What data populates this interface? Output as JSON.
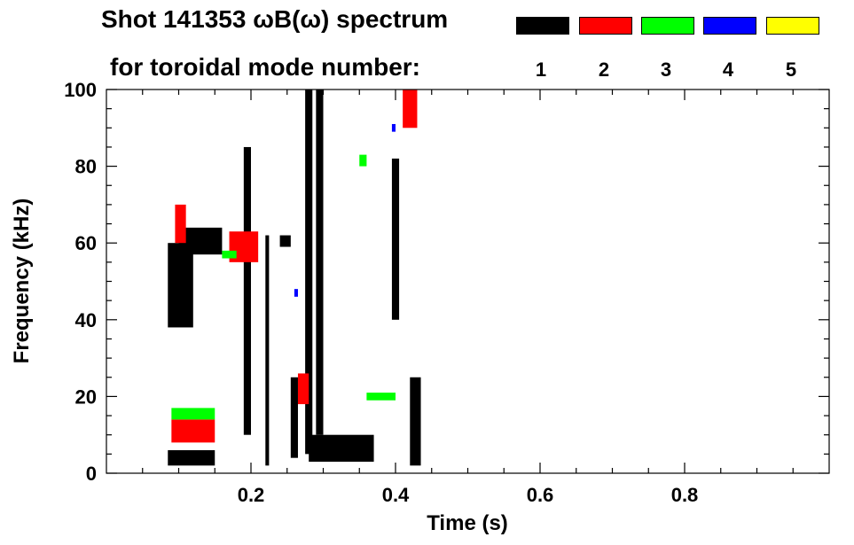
{
  "chart_data": {
    "type": "heatmap",
    "title_line1": "Shot 141353 ωB(ω) spectrum",
    "title_line2": "for toroidal mode number:",
    "xlabel": "Time (s)",
    "ylabel": "Frequency (kHz)",
    "xlim": [
      0.0,
      1.0
    ],
    "ylim": [
      0,
      100
    ],
    "x_ticks": [
      0.2,
      0.4,
      0.6,
      0.8
    ],
    "x_tick_labels": [
      "0.2",
      "0.4",
      "0.6",
      "0.8"
    ],
    "y_ticks": [
      0,
      20,
      40,
      60,
      80,
      100
    ],
    "y_tick_labels": [
      "0",
      "20",
      "40",
      "60",
      "80",
      "100"
    ],
    "legend": [
      {
        "n": "1",
        "color": "#000000"
      },
      {
        "n": "2",
        "color": "#ff0000"
      },
      {
        "n": "3",
        "color": "#00ff00"
      },
      {
        "n": "4",
        "color": "#0000ff"
      },
      {
        "n": "5",
        "color": "#ffff00"
      }
    ],
    "regions": [
      {
        "n": "1",
        "t": [
          0.085,
          0.12
        ],
        "f": [
          38,
          60
        ]
      },
      {
        "n": "1",
        "t": [
          0.1,
          0.16
        ],
        "f": [
          57,
          64
        ]
      },
      {
        "n": "1",
        "t": [
          0.085,
          0.15
        ],
        "f": [
          2,
          6
        ]
      },
      {
        "n": "1",
        "t": [
          0.19,
          0.2
        ],
        "f": [
          10,
          85
        ]
      },
      {
        "n": "1",
        "t": [
          0.22,
          0.225
        ],
        "f": [
          2,
          62
        ]
      },
      {
        "n": "1",
        "t": [
          0.24,
          0.255
        ],
        "f": [
          59,
          62
        ]
      },
      {
        "n": "1",
        "t": [
          0.255,
          0.265
        ],
        "f": [
          4,
          25
        ]
      },
      {
        "n": "1",
        "t": [
          0.275,
          0.285
        ],
        "f": [
          5,
          100
        ]
      },
      {
        "n": "1",
        "t": [
          0.28,
          0.37
        ],
        "f": [
          3,
          10
        ]
      },
      {
        "n": "1",
        "t": [
          0.29,
          0.3
        ],
        "f": [
          10,
          100
        ]
      },
      {
        "n": "1",
        "t": [
          0.395,
          0.405
        ],
        "f": [
          40,
          82
        ]
      },
      {
        "n": "1",
        "t": [
          0.42,
          0.435
        ],
        "f": [
          2,
          25
        ]
      },
      {
        "n": "2",
        "t": [
          0.095,
          0.11
        ],
        "f": [
          60,
          70
        ]
      },
      {
        "n": "2",
        "t": [
          0.09,
          0.15
        ],
        "f": [
          8,
          14
        ]
      },
      {
        "n": "2",
        "t": [
          0.17,
          0.21
        ],
        "f": [
          55,
          63
        ]
      },
      {
        "n": "2",
        "t": [
          0.265,
          0.28
        ],
        "f": [
          18,
          26
        ]
      },
      {
        "n": "2",
        "t": [
          0.41,
          0.43
        ],
        "f": [
          90,
          100
        ]
      },
      {
        "n": "3",
        "t": [
          0.09,
          0.15
        ],
        "f": [
          14,
          17
        ]
      },
      {
        "n": "3",
        "t": [
          0.16,
          0.18
        ],
        "f": [
          56,
          58
        ]
      },
      {
        "n": "3",
        "t": [
          0.36,
          0.4
        ],
        "f": [
          19,
          21
        ]
      },
      {
        "n": "3",
        "t": [
          0.35,
          0.36
        ],
        "f": [
          80,
          83
        ]
      },
      {
        "n": "4",
        "t": [
          0.26,
          0.265
        ],
        "f": [
          46,
          48
        ]
      },
      {
        "n": "4",
        "t": [
          0.395,
          0.4
        ],
        "f": [
          89,
          91
        ]
      }
    ]
  }
}
